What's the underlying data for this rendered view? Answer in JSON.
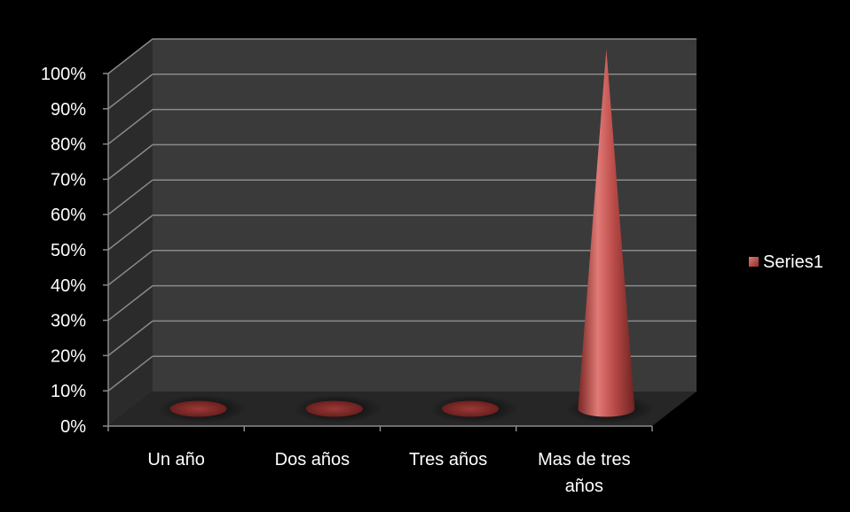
{
  "chart_data": {
    "type": "bar",
    "shape": "cone",
    "three_d": true,
    "categories": [
      "Un año",
      "Dos años",
      "Tres años",
      [
        "Mas de tres",
        "años"
      ]
    ],
    "series": [
      {
        "name": "Series1",
        "values": [
          0,
          0,
          0,
          100
        ]
      }
    ],
    "ylim": [
      0,
      100
    ],
    "y_ticks": [
      "0%",
      "10%",
      "20%",
      "30%",
      "40%",
      "50%",
      "60%",
      "70%",
      "80%",
      "90%",
      "100%"
    ],
    "grid": true,
    "legend_position": "right",
    "colors": {
      "background": "#000000",
      "back_wall": "#3a3a3a",
      "side_wall": "#2b2b2b",
      "floor": "#262626",
      "gridline": "#8a8a8a",
      "series": "#c0504d",
      "text": "#ffffff"
    }
  }
}
